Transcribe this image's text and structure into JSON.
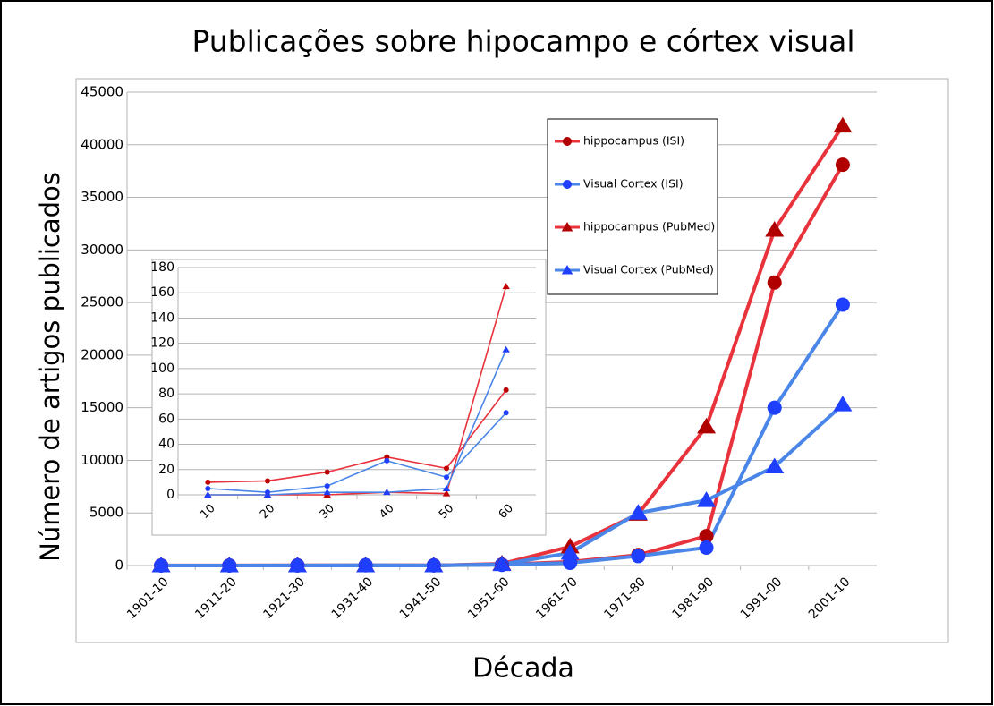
{
  "chart_data": [
    {
      "type": "line",
      "title": "Publicações sobre hipocampo e córtex visual",
      "xlabel": "Década",
      "ylabel": "Número de artigos publicados",
      "categories": [
        "1901-10",
        "1911-20",
        "1921-30",
        "1931-40",
        "1941-50",
        "1951-60",
        "1961-70",
        "1971-80",
        "1981-90",
        "1991-00",
        "2001-10"
      ],
      "ylim": [
        0,
        45000
      ],
      "yticks": [
        0,
        5000,
        10000,
        15000,
        20000,
        25000,
        30000,
        35000,
        40000,
        45000
      ],
      "grid": true,
      "legend": "upper right",
      "series": [
        {
          "name": "hippocampus (ISI)",
          "color": "#e8333c",
          "marker": "circle",
          "marker_color": "#b00000",
          "values": [
            10,
            11,
            18,
            30,
            21,
            83,
            350,
            1000,
            2800,
            26900,
            38100
          ]
        },
        {
          "name": "Visual Cortex (ISI)",
          "color": "#4a86e8",
          "marker": "circle",
          "marker_color": "#1f3fff",
          "values": [
            5,
            2,
            7,
            27,
            14,
            65,
            250,
            900,
            1700,
            15000,
            24800
          ]
        },
        {
          "name": "hippocampus (PubMed)",
          "color": "#e8333c",
          "marker": "triangle",
          "marker_color": "#b00000",
          "values": [
            0,
            0,
            0,
            2,
            1,
            165,
            1800,
            4900,
            13200,
            31900,
            41800
          ]
        },
        {
          "name": "Visual Cortex (PubMed)",
          "color": "#4a86e8",
          "marker": "triangle",
          "marker_color": "#1f3fff",
          "values": [
            0,
            0,
            2,
            2,
            5,
            115,
            1200,
            5000,
            6200,
            9400,
            15300
          ]
        }
      ]
    },
    {
      "type": "line",
      "categories": [
        "10",
        "20",
        "30",
        "40",
        "50",
        "60"
      ],
      "ylim": [
        0,
        180
      ],
      "yticks": [
        0,
        20,
        40,
        60,
        80,
        100,
        120,
        140,
        160,
        180
      ],
      "grid": true,
      "series": [
        {
          "color": "#e8333c",
          "marker": "circle",
          "marker_color": "#c00000",
          "values": [
            10,
            11,
            18,
            30,
            21,
            83
          ]
        },
        {
          "color": "#4a86e8",
          "marker": "circle",
          "marker_color": "#1f3fff",
          "values": [
            5,
            2,
            7,
            27,
            14,
            65
          ]
        },
        {
          "color": "#e8333c",
          "marker": "triangle",
          "marker_color": "#c00000",
          "values": [
            0,
            0,
            0,
            2,
            1,
            165
          ]
        },
        {
          "color": "#4a86e8",
          "marker": "triangle",
          "marker_color": "#1f3fff",
          "values": [
            0,
            0,
            2,
            2,
            5,
            115
          ]
        }
      ]
    }
  ]
}
